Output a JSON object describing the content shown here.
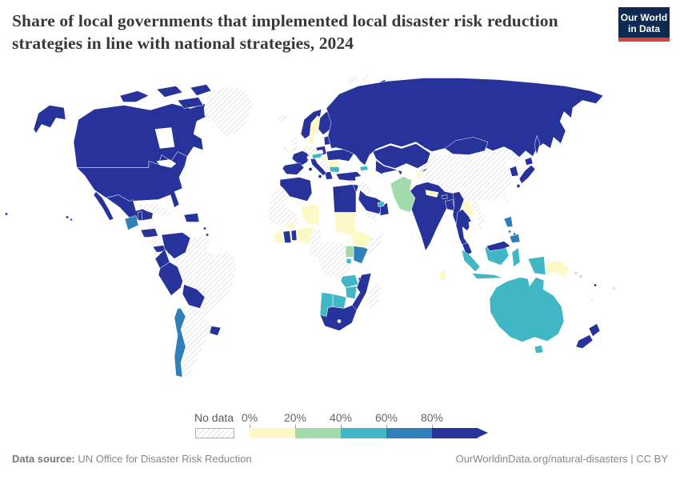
{
  "header": {
    "title": "Share of local governments that implemented local disaster risk reduction strategies in line with national strategies, 2024",
    "logo": {
      "line1": "Our World",
      "line2": "in Data",
      "bg_color": "#0f2a50",
      "accent_color": "#d7413a"
    }
  },
  "legend": {
    "no_data_label": "No data",
    "no_data_style": "hatched",
    "ticks": [
      "0%",
      "20%",
      "40%",
      "60%",
      "80%"
    ],
    "bins": [
      {
        "range": "0-20%",
        "color": "#fcf9c7"
      },
      {
        "range": "20-40%",
        "color": "#a3daab"
      },
      {
        "range": "40-60%",
        "color": "#41b6c4"
      },
      {
        "range": "60-80%",
        "color": "#2f80ba"
      },
      {
        "range": "80-100%",
        "color": "#27339b"
      }
    ]
  },
  "footer": {
    "source_label": "Data source:",
    "source_text": " UN Office for Disaster Risk Reduction",
    "credit": "OurWorldinData.org/natural-disasters | CC BY"
  },
  "chart_data": {
    "type": "choropleth_map",
    "title": "Share of local governments that implemented local disaster risk reduction strategies in line with national strategies, 2024",
    "year": 2024,
    "unit": "%",
    "bin_labels": [
      "0-20%",
      "20-40%",
      "40-60%",
      "60-80%",
      "80-100%",
      "No data",
      "blank"
    ],
    "regions": {
      "canada": "80-100%",
      "canada-arctic": "80-100%",
      "alaska": "80-100%",
      "usa": "80-100%",
      "hawaii": "80-100%",
      "mexico": "80-100%",
      "greenland": "No data",
      "guatemala": "60-80%",
      "belize": "80-100%",
      "honduras": "80-100%",
      "nicaragua": "No data",
      "costa-rica": "80-100%",
      "panama": "80-100%",
      "cuba": "No data",
      "dominican-republic": "80-100%",
      "lesser-antilles": "80-100%",
      "colombia": "80-100%",
      "venezuela": "No data",
      "guyana-suriname": "blank",
      "ecuador": "80-100%",
      "peru": "80-100%",
      "brazil": "No data",
      "bolivia": "80-100%",
      "paraguay": "No data",
      "uruguay": "80-100%",
      "argentina": "No data",
      "chile": "60-80%",
      "iceland": "No data",
      "uk": "No data",
      "ireland": "No data",
      "norway": "80-100%",
      "sweden": "0-20%",
      "finland": "80-100%",
      "denmark": "blank",
      "germany": "No data",
      "benelux": "No data",
      "france": "80-100%",
      "iberia": "80-100%",
      "italy": "80-100%",
      "sicily": "80-100%",
      "sardinia": "80-100%",
      "switzerland": "blank",
      "austria": "40-60%",
      "czechia": "blank",
      "poland": "80-100%",
      "baltics": "80-100%",
      "belarus": "blank",
      "ukraine": "80-100%",
      "hungary": "0-20%",
      "romania": "0-20%",
      "western-balkans": "No data",
      "bulgaria": "40-60%",
      "greece": "80-100%",
      "svalbard": "No data",
      "turkey": "80-100%",
      "georgia": "40-60%",
      "azerbaijan": "0-20%",
      "cyprus": "0-20%",
      "syria": "blank",
      "iraq": "No data",
      "jordan": "80-100%",
      "saudi-arabia": "80-100%",
      "yemen": "No data",
      "oman": "80-100%",
      "uae": "40-60%",
      "iran": "blank",
      "afghanistan": "blank",
      "west-africa": "No data",
      "algeria": "80-100%",
      "tunisia": "blank",
      "libya": "blank",
      "egypt": "80-100%",
      "sudan": "0-20%",
      "chad": "blank",
      "niger": "0-20%",
      "nigeria": "0-20%",
      "burkina-faso": "0-20%",
      "ivory-coast": "0-20%",
      "ghana": "80-100%",
      "togo-benin": "80-100%",
      "guinea": "blank",
      "cameroon": "No data",
      "central-african-republic": "blank",
      "south-sudan": "blank",
      "ethiopia": "0-20%",
      "somalia": "No data",
      "kenya": "60-80%",
      "uganda": "20-40%",
      "rwanda": "40-60%",
      "congo-gabon": "No data",
      "drc": "No data",
      "tanzania": "blank",
      "angola": "blank",
      "zambia": "40-60%",
      "malawi": "80-100%",
      "mozambique": "80-100%",
      "zimbabwe": "40-60%",
      "botswana": "40-60%",
      "namibia": "40-60%",
      "south-africa": "80-100%",
      "lesotho": "blank",
      "madagascar": "No data",
      "russia": "80-100%",
      "sakhalin": "80-100%",
      "novaya-zemlya": "80-100%",
      "kazakhstan": "80-100%",
      "uzbekistan-turkmenistan": "80-100%",
      "kyrgyzstan": "80-100%",
      "tajikistan": "0-20%",
      "mongolia": "80-100%",
      "china": "No data",
      "taiwan": "No data",
      "north-korea": "blank",
      "south-korea": "80-100%",
      "japan": "80-100%",
      "pakistan": "20-40%",
      "india": "80-100%",
      "nepal": "0-20%",
      "bhutan": "80-100%",
      "bangladesh": "80-100%",
      "sri-lanka": "0-20%",
      "myanmar": "80-100%",
      "laos": "0-20%",
      "vietnam": "No data",
      "cambodia": "blank",
      "thailand": "80-100%",
      "malaysia-peninsula": "80-100%",
      "malaysia-borneo": "80-100%",
      "indonesia": "40-60%",
      "philippines": "60-80%",
      "papua-new-guinea": "0-20%",
      "solomon-islands": "blank",
      "australia": "40-60%",
      "tasmania": "40-60%",
      "new-zealand": "80-100%",
      "vanuatu": "80-100%",
      "new-caledonia": "No data",
      "fiji": "0-20%",
      "pacific-dot": "80-100%"
    }
  }
}
